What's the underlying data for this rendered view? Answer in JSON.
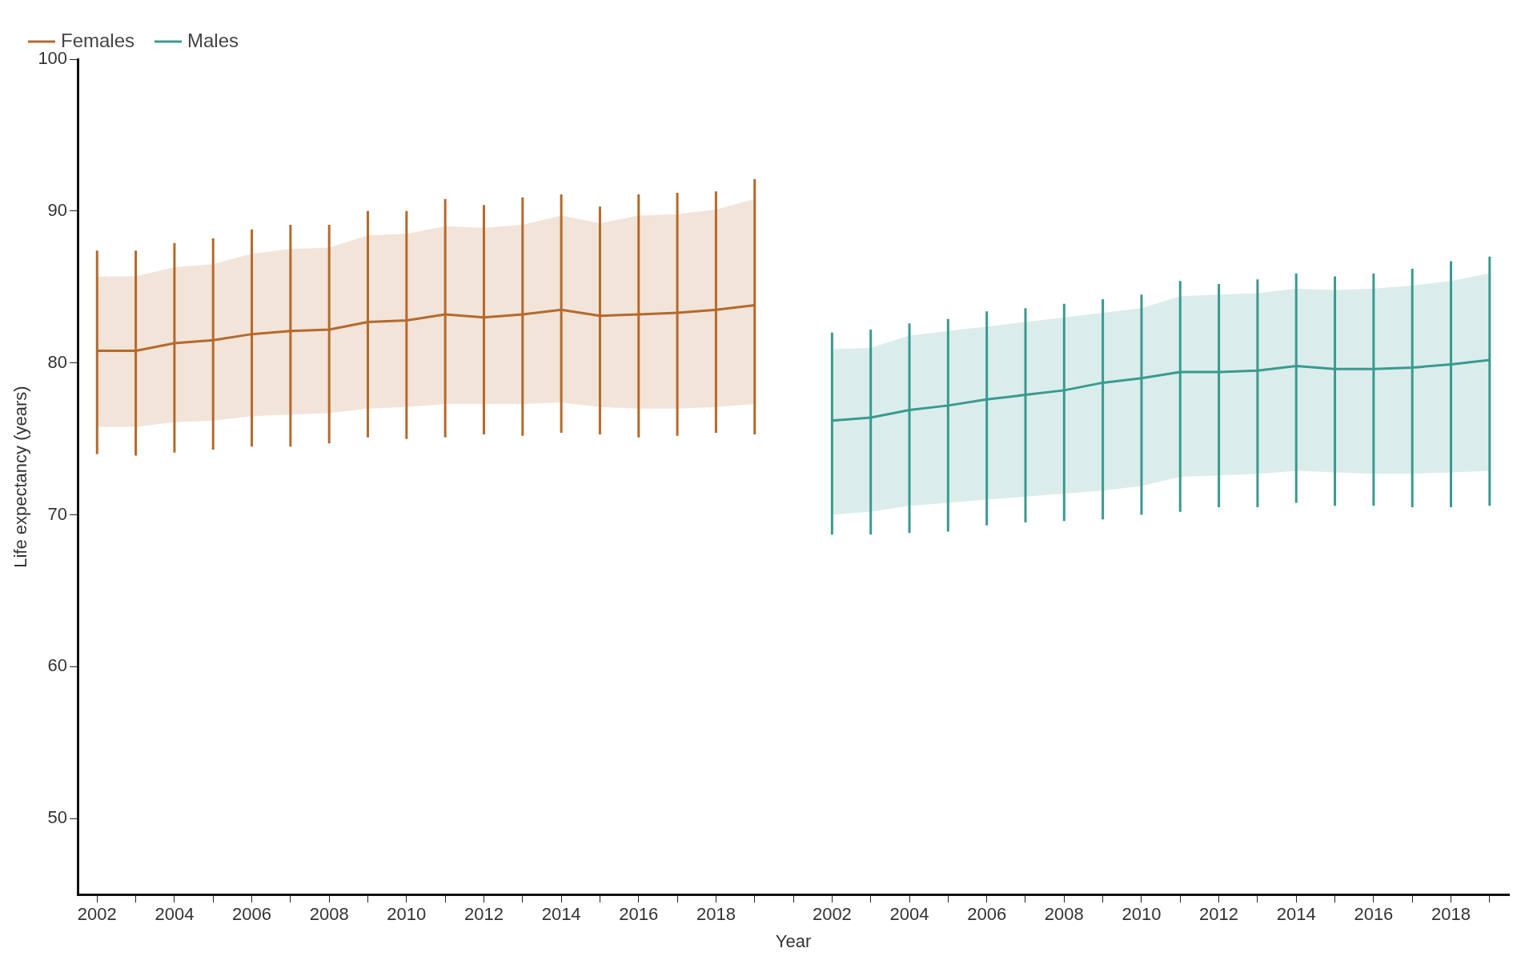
{
  "chart_data": {
    "type": "line",
    "xlabel": "Year",
    "ylabel": "Life expectancy (years)",
    "categories": [
      "2002",
      null,
      "2004",
      null,
      "2006",
      null,
      "2008",
      null,
      "2010",
      null,
      "2012",
      null,
      "2014",
      null,
      "2016",
      null,
      "2018",
      null,
      null,
      "2002",
      null,
      "2004",
      null,
      "2006",
      null,
      "2008",
      null,
      "2010",
      null,
      "2012",
      null,
      "2014",
      null,
      "2016",
      null,
      "2018",
      null
    ],
    "ylim": [
      45,
      100
    ],
    "yticks": [
      50,
      60,
      70,
      80,
      90,
      100
    ],
    "grid": false,
    "legend": "top left",
    "marker": "none",
    "line_style": "solid",
    "series": [
      {
        "name": "Females",
        "color": "#b5692b",
        "values": [
          80.8,
          80.8,
          81.3,
          81.5,
          81.9,
          82.1,
          82.2,
          82.7,
          82.8,
          83.2,
          83.0,
          83.2,
          83.5,
          83.1,
          83.2,
          83.3,
          83.5,
          83.8,
          null,
          null,
          null,
          null,
          null,
          null,
          null,
          null,
          null,
          null,
          null,
          null,
          null,
          null,
          null,
          null,
          null,
          null,
          null
        ],
        "lower": [
          75.8,
          75.8,
          76.1,
          76.2,
          76.5,
          76.6,
          76.7,
          77.0,
          77.1,
          77.3,
          77.3,
          77.3,
          77.4,
          77.1,
          77.0,
          77.0,
          77.1,
          77.3,
          null,
          null,
          null,
          null,
          null,
          null,
          null,
          null,
          null,
          null,
          null,
          null,
          null,
          null,
          null,
          null,
          null,
          null,
          null
        ],
        "upper": [
          85.7,
          85.7,
          86.3,
          86.5,
          87.2,
          87.5,
          87.6,
          88.4,
          88.5,
          89.0,
          88.9,
          89.1,
          89.7,
          89.2,
          89.7,
          89.8,
          90.1,
          90.8,
          null,
          null,
          null,
          null,
          null,
          null,
          null,
          null,
          null,
          null,
          null,
          null,
          null,
          null,
          null,
          null,
          null,
          null,
          null
        ],
        "errors": [
          [
            74.0,
            87.4
          ],
          [
            73.9,
            87.4
          ],
          [
            74.1,
            87.9
          ],
          [
            74.3,
            88.2
          ],
          [
            74.5,
            88.8
          ],
          [
            74.5,
            89.1
          ],
          [
            74.7,
            89.1
          ],
          [
            75.1,
            90.0
          ],
          [
            75.0,
            90.0
          ],
          [
            75.1,
            90.8
          ],
          [
            75.3,
            90.4
          ],
          [
            75.2,
            90.9
          ],
          [
            75.4,
            91.1
          ],
          [
            75.3,
            90.3
          ],
          [
            75.1,
            91.1
          ],
          [
            75.2,
            91.2
          ],
          [
            75.4,
            91.3
          ],
          [
            75.3,
            92.1
          ],
          null,
          null,
          null,
          null,
          null,
          null,
          null,
          null,
          null,
          null,
          null,
          null,
          null,
          null,
          null,
          null,
          null,
          null,
          null
        ]
      },
      {
        "name": "Males",
        "color": "#3a9a8f",
        "values": [
          null,
          null,
          null,
          null,
          null,
          null,
          null,
          null,
          null,
          null,
          null,
          null,
          null,
          null,
          null,
          null,
          null,
          null,
          null,
          76.2,
          76.4,
          76.9,
          77.2,
          77.6,
          77.9,
          78.2,
          78.7,
          79.0,
          79.4,
          79.4,
          79.5,
          79.8,
          79.6,
          79.6,
          79.7,
          79.9,
          80.2
        ],
        "lower": [
          null,
          null,
          null,
          null,
          null,
          null,
          null,
          null,
          null,
          null,
          null,
          null,
          null,
          null,
          null,
          null,
          null,
          null,
          null,
          70.0,
          70.2,
          70.6,
          70.8,
          71.0,
          71.2,
          71.4,
          71.6,
          71.9,
          72.5,
          72.6,
          72.7,
          72.9,
          72.8,
          72.7,
          72.7,
          72.8,
          72.9
        ],
        "upper": [
          null,
          null,
          null,
          null,
          null,
          null,
          null,
          null,
          null,
          null,
          null,
          null,
          null,
          null,
          null,
          null,
          null,
          null,
          null,
          80.9,
          81.0,
          81.8,
          82.1,
          82.4,
          82.7,
          83.0,
          83.3,
          83.6,
          84.4,
          84.5,
          84.6,
          84.9,
          84.8,
          84.9,
          85.1,
          85.4,
          85.9
        ],
        "errors": [
          null,
          null,
          null,
          null,
          null,
          null,
          null,
          null,
          null,
          null,
          null,
          null,
          null,
          null,
          null,
          null,
          null,
          null,
          null,
          [
            68.7,
            82.0
          ],
          [
            68.7,
            82.2
          ],
          [
            68.8,
            82.6
          ],
          [
            68.9,
            82.9
          ],
          [
            69.3,
            83.4
          ],
          [
            69.5,
            83.6
          ],
          [
            69.6,
            83.9
          ],
          [
            69.7,
            84.2
          ],
          [
            70.0,
            84.5
          ],
          [
            70.2,
            85.4
          ],
          [
            70.5,
            85.2
          ],
          [
            70.5,
            85.5
          ],
          [
            70.8,
            85.9
          ],
          [
            70.6,
            85.7
          ],
          [
            70.6,
            85.9
          ],
          [
            70.5,
            86.2
          ],
          [
            70.5,
            86.7
          ],
          [
            70.6,
            87.0
          ]
        ]
      }
    ]
  }
}
